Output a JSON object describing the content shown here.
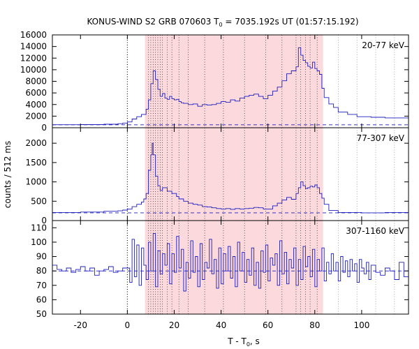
{
  "chart_data": {
    "type": "line",
    "title": "KONUS-WIND S2 GRB 070603 T",
    "title_sub": "0",
    "title_rest": " = 7035.192s UT (01:57:15.192)",
    "xlabel": "T - T",
    "xlabel_sub": "0",
    "xlabel_unit": ", s",
    "ylabel": "counts / 512 ms",
    "xlim": [
      -32,
      120
    ],
    "x_ticks": [
      -20,
      0,
      20,
      40,
      60,
      80,
      100
    ],
    "shaded_region": [
      7.5,
      83.5
    ],
    "shade_color": "#fbd9dc",
    "line_color": "#1d1dbe",
    "vlines_black": [
      0,
      9,
      10,
      11,
      12,
      13,
      14,
      15,
      17,
      19,
      22,
      26,
      33,
      41,
      50,
      59,
      66,
      72,
      74,
      76,
      78,
      81
    ],
    "vlines_gray": [
      90,
      98,
      106,
      114
    ],
    "panels": [
      {
        "name": "20-77 keV",
        "ylim": [
          0,
          16000
        ],
        "y_ticks": [
          0,
          2000,
          4000,
          6000,
          8000,
          10000,
          12000,
          14000,
          16000
        ],
        "background": 500,
        "points": [
          [
            -32,
            520
          ],
          [
            -20,
            540
          ],
          [
            -10,
            600
          ],
          [
            -4,
            700
          ],
          [
            -2,
            800
          ],
          [
            0,
            1000
          ],
          [
            2,
            1500
          ],
          [
            4,
            1900
          ],
          [
            6,
            2300
          ],
          [
            8,
            3200
          ],
          [
            9,
            4800
          ],
          [
            10,
            7600
          ],
          [
            11,
            9800
          ],
          [
            12,
            8300
          ],
          [
            13,
            6600
          ],
          [
            14,
            5400
          ],
          [
            15,
            5900
          ],
          [
            16,
            5100
          ],
          [
            17,
            4900
          ],
          [
            18,
            5400
          ],
          [
            19,
            5000
          ],
          [
            20,
            4800
          ],
          [
            21,
            4900
          ],
          [
            22,
            4500
          ],
          [
            23,
            4300
          ],
          [
            24,
            4200
          ],
          [
            26,
            4000
          ],
          [
            28,
            4100
          ],
          [
            30,
            3700
          ],
          [
            32,
            4000
          ],
          [
            34,
            3900
          ],
          [
            36,
            4000
          ],
          [
            38,
            4200
          ],
          [
            40,
            4500
          ],
          [
            42,
            4400
          ],
          [
            44,
            4800
          ],
          [
            46,
            4600
          ],
          [
            48,
            5100
          ],
          [
            50,
            5400
          ],
          [
            52,
            5600
          ],
          [
            54,
            5800
          ],
          [
            56,
            5400
          ],
          [
            58,
            5000
          ],
          [
            60,
            5600
          ],
          [
            62,
            6300
          ],
          [
            64,
            7000
          ],
          [
            66,
            8100
          ],
          [
            68,
            9300
          ],
          [
            70,
            9800
          ],
          [
            72,
            10500
          ],
          [
            73,
            13800
          ],
          [
            74,
            12500
          ],
          [
            75,
            11600
          ],
          [
            76,
            11200
          ],
          [
            77,
            10600
          ],
          [
            78,
            10300
          ],
          [
            79,
            11300
          ],
          [
            80,
            10200
          ],
          [
            81,
            9800
          ],
          [
            82,
            9200
          ],
          [
            83,
            6800
          ],
          [
            84,
            5200
          ],
          [
            86,
            4100
          ],
          [
            88,
            3500
          ],
          [
            90,
            2700
          ],
          [
            94,
            2300
          ],
          [
            98,
            1900
          ],
          [
            104,
            1800
          ],
          [
            110,
            1700
          ],
          [
            120,
            1800
          ]
        ]
      },
      {
        "name": "77-307 keV",
        "ylim": [
          0,
          2400
        ],
        "y_ticks": [
          0,
          500,
          1000,
          1500,
          2000
        ],
        "background": 200,
        "points": [
          [
            -32,
            210
          ],
          [
            -20,
            220
          ],
          [
            -10,
            240
          ],
          [
            -4,
            250
          ],
          [
            -2,
            270
          ],
          [
            0,
            300
          ],
          [
            2,
            360
          ],
          [
            4,
            420
          ],
          [
            6,
            480
          ],
          [
            7,
            560
          ],
          [
            8,
            700
          ],
          [
            9,
            1300
          ],
          [
            10,
            1700
          ],
          [
            10.6,
            2000
          ],
          [
            11,
            1700
          ],
          [
            12,
            1150
          ],
          [
            13,
            900
          ],
          [
            14,
            780
          ],
          [
            15,
            850
          ],
          [
            17,
            760
          ],
          [
            19,
            700
          ],
          [
            21,
            620
          ],
          [
            22,
            560
          ],
          [
            24,
            500
          ],
          [
            26,
            450
          ],
          [
            28,
            420
          ],
          [
            30,
            400
          ],
          [
            32,
            360
          ],
          [
            34,
            350
          ],
          [
            36,
            330
          ],
          [
            38,
            310
          ],
          [
            40,
            300
          ],
          [
            42,
            310
          ],
          [
            44,
            290
          ],
          [
            46,
            310
          ],
          [
            48,
            300
          ],
          [
            50,
            310
          ],
          [
            52,
            320
          ],
          [
            54,
            340
          ],
          [
            56,
            330
          ],
          [
            58,
            300
          ],
          [
            60,
            300
          ],
          [
            62,
            380
          ],
          [
            64,
            450
          ],
          [
            66,
            530
          ],
          [
            68,
            600
          ],
          [
            70,
            550
          ],
          [
            72,
            700
          ],
          [
            73,
            850
          ],
          [
            74,
            1000
          ],
          [
            75,
            900
          ],
          [
            76,
            830
          ],
          [
            77,
            850
          ],
          [
            78,
            890
          ],
          [
            79,
            870
          ],
          [
            80,
            920
          ],
          [
            81,
            850
          ],
          [
            82,
            700
          ],
          [
            83,
            580
          ],
          [
            84,
            420
          ],
          [
            86,
            260
          ],
          [
            90,
            210
          ],
          [
            100,
            200
          ],
          [
            110,
            210
          ],
          [
            120,
            200
          ]
        ]
      },
      {
        "name": "307-1160 keV",
        "ylim": [
          50,
          115
        ],
        "y_ticks": [
          50,
          60,
          70,
          80,
          90,
          100,
          110
        ],
        "background": 80,
        "points": [
          [
            -32,
            84
          ],
          [
            -30,
            81
          ],
          [
            -28,
            80
          ],
          [
            -26,
            82
          ],
          [
            -24,
            79
          ],
          [
            -22,
            81
          ],
          [
            -20,
            83
          ],
          [
            -18,
            80
          ],
          [
            -16,
            82
          ],
          [
            -14,
            77
          ],
          [
            -12,
            80
          ],
          [
            -10,
            81
          ],
          [
            -8,
            83
          ],
          [
            -6,
            79
          ],
          [
            -4,
            80
          ],
          [
            -2,
            82
          ],
          [
            0,
            82
          ],
          [
            1,
            72
          ],
          [
            2,
            102
          ],
          [
            3,
            76
          ],
          [
            4,
            98
          ],
          [
            5,
            70
          ],
          [
            6,
            96
          ],
          [
            7,
            84
          ],
          [
            8,
            74
          ],
          [
            9,
            100
          ],
          [
            10,
            80
          ],
          [
            11,
            106
          ],
          [
            12,
            69
          ],
          [
            13,
            94
          ],
          [
            14,
            78
          ],
          [
            15,
            92
          ],
          [
            16,
            84
          ],
          [
            17,
            99
          ],
          [
            18,
            71
          ],
          [
            19,
            92
          ],
          [
            20,
            79
          ],
          [
            21,
            104
          ],
          [
            22,
            82
          ],
          [
            23,
            95
          ],
          [
            24,
            66
          ],
          [
            25,
            86
          ],
          [
            26,
            75
          ],
          [
            27,
            101
          ],
          [
            28,
            79
          ],
          [
            29,
            90
          ],
          [
            30,
            69
          ],
          [
            31,
            99
          ],
          [
            32,
            74
          ],
          [
            33,
            86
          ],
          [
            34,
            82
          ],
          [
            35,
            102
          ],
          [
            36,
            78
          ],
          [
            37,
            88
          ],
          [
            38,
            68
          ],
          [
            39,
            96
          ],
          [
            40,
            71
          ],
          [
            41,
            92
          ],
          [
            42,
            80
          ],
          [
            43,
            97
          ],
          [
            44,
            75
          ],
          [
            45,
            90
          ],
          [
            46,
            69
          ],
          [
            47,
            100
          ],
          [
            48,
            80
          ],
          [
            49,
            93
          ],
          [
            50,
            72
          ],
          [
            51,
            88
          ],
          [
            52,
            77
          ],
          [
            53,
            96
          ],
          [
            54,
            70
          ],
          [
            55,
            86
          ],
          [
            56,
            68
          ],
          [
            57,
            94
          ],
          [
            58,
            79
          ],
          [
            59,
            98
          ],
          [
            60,
            73
          ],
          [
            61,
            89
          ],
          [
            62,
            84
          ],
          [
            63,
            92
          ],
          [
            64,
            70
          ],
          [
            65,
            101
          ],
          [
            66,
            78
          ],
          [
            67,
            93
          ],
          [
            68,
            71
          ],
          [
            69,
            88
          ],
          [
            70,
            82
          ],
          [
            71,
            96
          ],
          [
            72,
            70
          ],
          [
            73,
            88
          ],
          [
            74,
            74
          ],
          [
            75,
            97
          ],
          [
            76,
            83
          ],
          [
            77,
            90
          ],
          [
            78,
            76
          ],
          [
            79,
            95
          ],
          [
            80,
            69
          ],
          [
            81,
            88
          ],
          [
            82,
            80
          ],
          [
            83,
            96
          ],
          [
            84,
            73
          ],
          [
            85,
            86
          ],
          [
            86,
            78
          ],
          [
            87,
            92
          ],
          [
            88,
            80
          ],
          [
            89,
            86
          ],
          [
            90,
            73
          ],
          [
            91,
            90
          ],
          [
            92,
            79
          ],
          [
            93,
            87
          ],
          [
            94,
            76
          ],
          [
            95,
            88
          ],
          [
            96,
            80
          ],
          [
            97,
            85
          ],
          [
            98,
            72
          ],
          [
            99,
            88
          ],
          [
            100,
            82
          ],
          [
            101,
            78
          ],
          [
            102,
            86
          ],
          [
            103,
            74
          ],
          [
            104,
            84
          ],
          [
            106,
            79
          ],
          [
            108,
            77
          ],
          [
            110,
            82
          ],
          [
            112,
            80
          ],
          [
            114,
            74
          ],
          [
            116,
            86
          ],
          [
            118,
            76
          ],
          [
            120,
            82
          ]
        ]
      }
    ]
  }
}
